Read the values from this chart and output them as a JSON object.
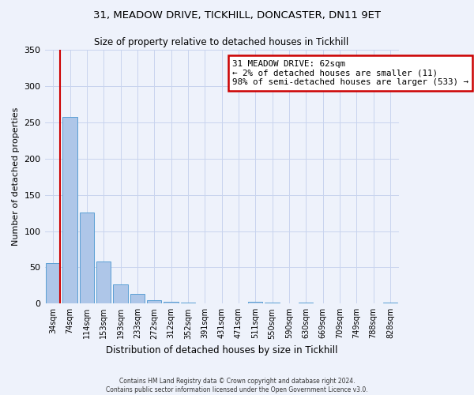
{
  "title1": "31, MEADOW DRIVE, TICKHILL, DONCASTER, DN11 9ET",
  "title2": "Size of property relative to detached houses in Tickhill",
  "xlabel": "Distribution of detached houses by size in Tickhill",
  "ylabel": "Number of detached properties",
  "bar_labels": [
    "34sqm",
    "74sqm",
    "114sqm",
    "153sqm",
    "193sqm",
    "233sqm",
    "272sqm",
    "312sqm",
    "352sqm",
    "391sqm",
    "431sqm",
    "471sqm",
    "511sqm",
    "550sqm",
    "590sqm",
    "630sqm",
    "669sqm",
    "709sqm",
    "749sqm",
    "788sqm",
    "828sqm"
  ],
  "bar_values": [
    56,
    257,
    126,
    58,
    27,
    13,
    5,
    2,
    1,
    0,
    0,
    0,
    3,
    1,
    0,
    1,
    0,
    0,
    0,
    0,
    1
  ],
  "bar_color": "#aec6e8",
  "bar_edge_color": "#5a9fd4",
  "ylim": [
    0,
    350
  ],
  "yticks": [
    0,
    50,
    100,
    150,
    200,
    250,
    300,
    350
  ],
  "annotation_title": "31 MEADOW DRIVE: 62sqm",
  "annotation_line1": "← 2% of detached houses are smaller (11)",
  "annotation_line2": "98% of semi-detached houses are larger (533) →",
  "annotation_box_color": "#ffffff",
  "annotation_border_color": "#cc0000",
  "red_line_color": "#cc0000",
  "footer1": "Contains HM Land Registry data © Crown copyright and database right 2024.",
  "footer2": "Contains public sector information licensed under the Open Government Licence v3.0.",
  "background_color": "#eef2fb",
  "grid_color": "#c8d4ee"
}
